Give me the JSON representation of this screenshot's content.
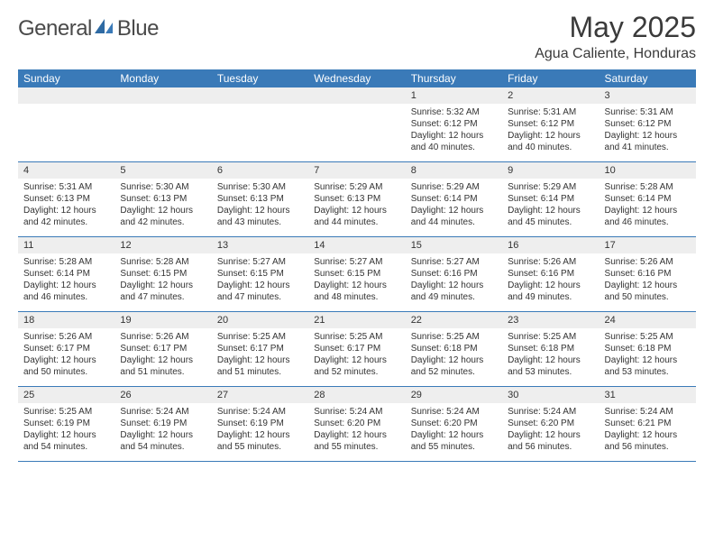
{
  "brand": {
    "part1": "General",
    "part2": "Blue"
  },
  "colors": {
    "header_bg": "#3a7ab8",
    "header_text": "#ffffff",
    "daynum_bg": "#eeeeee",
    "border": "#3a7ab8",
    "title_text": "#3a3a3a",
    "body_text": "#333333"
  },
  "title": "May 2025",
  "location": "Agua Caliente, Honduras",
  "weekdays": [
    "Sunday",
    "Monday",
    "Tuesday",
    "Wednesday",
    "Thursday",
    "Friday",
    "Saturday"
  ],
  "layout": {
    "columns": 7,
    "rows": 5,
    "first_weekday_index": 4
  },
  "days": [
    {
      "n": 1,
      "sunrise": "5:32 AM",
      "sunset": "6:12 PM",
      "daylight": "12 hours and 40 minutes."
    },
    {
      "n": 2,
      "sunrise": "5:31 AM",
      "sunset": "6:12 PM",
      "daylight": "12 hours and 40 minutes."
    },
    {
      "n": 3,
      "sunrise": "5:31 AM",
      "sunset": "6:12 PM",
      "daylight": "12 hours and 41 minutes."
    },
    {
      "n": 4,
      "sunrise": "5:31 AM",
      "sunset": "6:13 PM",
      "daylight": "12 hours and 42 minutes."
    },
    {
      "n": 5,
      "sunrise": "5:30 AM",
      "sunset": "6:13 PM",
      "daylight": "12 hours and 42 minutes."
    },
    {
      "n": 6,
      "sunrise": "5:30 AM",
      "sunset": "6:13 PM",
      "daylight": "12 hours and 43 minutes."
    },
    {
      "n": 7,
      "sunrise": "5:29 AM",
      "sunset": "6:13 PM",
      "daylight": "12 hours and 44 minutes."
    },
    {
      "n": 8,
      "sunrise": "5:29 AM",
      "sunset": "6:14 PM",
      "daylight": "12 hours and 44 minutes."
    },
    {
      "n": 9,
      "sunrise": "5:29 AM",
      "sunset": "6:14 PM",
      "daylight": "12 hours and 45 minutes."
    },
    {
      "n": 10,
      "sunrise": "5:28 AM",
      "sunset": "6:14 PM",
      "daylight": "12 hours and 46 minutes."
    },
    {
      "n": 11,
      "sunrise": "5:28 AM",
      "sunset": "6:14 PM",
      "daylight": "12 hours and 46 minutes."
    },
    {
      "n": 12,
      "sunrise": "5:28 AM",
      "sunset": "6:15 PM",
      "daylight": "12 hours and 47 minutes."
    },
    {
      "n": 13,
      "sunrise": "5:27 AM",
      "sunset": "6:15 PM",
      "daylight": "12 hours and 47 minutes."
    },
    {
      "n": 14,
      "sunrise": "5:27 AM",
      "sunset": "6:15 PM",
      "daylight": "12 hours and 48 minutes."
    },
    {
      "n": 15,
      "sunrise": "5:27 AM",
      "sunset": "6:16 PM",
      "daylight": "12 hours and 49 minutes."
    },
    {
      "n": 16,
      "sunrise": "5:26 AM",
      "sunset": "6:16 PM",
      "daylight": "12 hours and 49 minutes."
    },
    {
      "n": 17,
      "sunrise": "5:26 AM",
      "sunset": "6:16 PM",
      "daylight": "12 hours and 50 minutes."
    },
    {
      "n": 18,
      "sunrise": "5:26 AM",
      "sunset": "6:17 PM",
      "daylight": "12 hours and 50 minutes."
    },
    {
      "n": 19,
      "sunrise": "5:26 AM",
      "sunset": "6:17 PM",
      "daylight": "12 hours and 51 minutes."
    },
    {
      "n": 20,
      "sunrise": "5:25 AM",
      "sunset": "6:17 PM",
      "daylight": "12 hours and 51 minutes."
    },
    {
      "n": 21,
      "sunrise": "5:25 AM",
      "sunset": "6:17 PM",
      "daylight": "12 hours and 52 minutes."
    },
    {
      "n": 22,
      "sunrise": "5:25 AM",
      "sunset": "6:18 PM",
      "daylight": "12 hours and 52 minutes."
    },
    {
      "n": 23,
      "sunrise": "5:25 AM",
      "sunset": "6:18 PM",
      "daylight": "12 hours and 53 minutes."
    },
    {
      "n": 24,
      "sunrise": "5:25 AM",
      "sunset": "6:18 PM",
      "daylight": "12 hours and 53 minutes."
    },
    {
      "n": 25,
      "sunrise": "5:25 AM",
      "sunset": "6:19 PM",
      "daylight": "12 hours and 54 minutes."
    },
    {
      "n": 26,
      "sunrise": "5:24 AM",
      "sunset": "6:19 PM",
      "daylight": "12 hours and 54 minutes."
    },
    {
      "n": 27,
      "sunrise": "5:24 AM",
      "sunset": "6:19 PM",
      "daylight": "12 hours and 55 minutes."
    },
    {
      "n": 28,
      "sunrise": "5:24 AM",
      "sunset": "6:20 PM",
      "daylight": "12 hours and 55 minutes."
    },
    {
      "n": 29,
      "sunrise": "5:24 AM",
      "sunset": "6:20 PM",
      "daylight": "12 hours and 55 minutes."
    },
    {
      "n": 30,
      "sunrise": "5:24 AM",
      "sunset": "6:20 PM",
      "daylight": "12 hours and 56 minutes."
    },
    {
      "n": 31,
      "sunrise": "5:24 AM",
      "sunset": "6:21 PM",
      "daylight": "12 hours and 56 minutes."
    }
  ],
  "labels": {
    "sunrise": "Sunrise:",
    "sunset": "Sunset:",
    "daylight": "Daylight:"
  }
}
